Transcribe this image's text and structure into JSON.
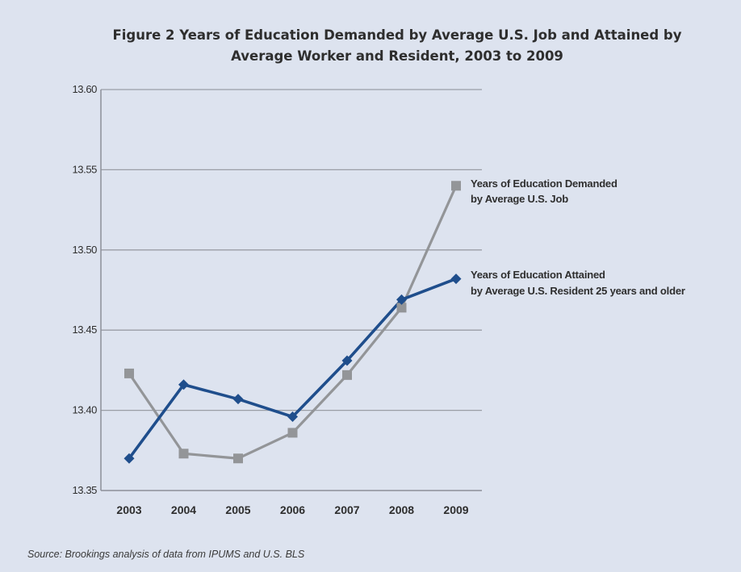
{
  "chart_data": {
    "type": "line",
    "title_line1": "Figure 2 Years of Education Demanded by Average U.S. Job and Attained by",
    "title_line2": "Average Worker and Resident, 2003 to 2009",
    "categories": [
      "2003",
      "2004",
      "2005",
      "2006",
      "2007",
      "2008",
      "2009"
    ],
    "ylim": [
      13.35,
      13.6
    ],
    "yticks": [
      "13.60",
      "13.55",
      "13.50",
      "13.45",
      "13.40",
      "13.35"
    ],
    "ytick_values": [
      13.6,
      13.55,
      13.5,
      13.45,
      13.4,
      13.35
    ],
    "grid": true,
    "legend_placement": "right",
    "series": [
      {
        "name_line1": "Years of Education Demanded",
        "name_line2": "by Average U.S. Job",
        "marker": "square",
        "color": "#939598",
        "values": [
          13.423,
          13.373,
          13.37,
          13.386,
          13.422,
          13.464,
          13.54
        ]
      },
      {
        "name_line1": "Years of Education Attained",
        "name_line2": "by Average U.S. Resident 25 years and older",
        "marker": "diamond",
        "color": "#1f4e8c",
        "values": [
          13.37,
          13.416,
          13.407,
          13.396,
          13.431,
          13.469,
          13.482
        ]
      }
    ],
    "source": "Source: Brookings analysis of data from IPUMS and U.S. BLS"
  }
}
